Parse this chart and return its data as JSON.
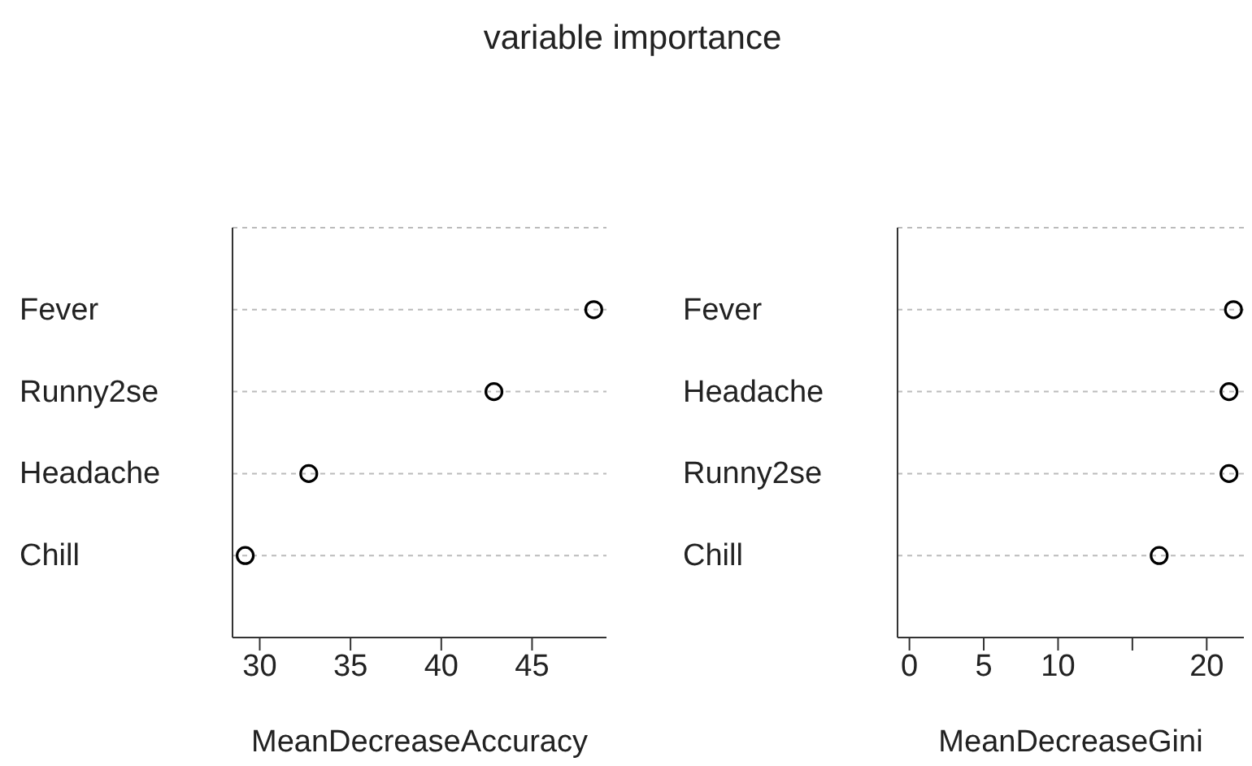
{
  "chart_data": [
    {
      "type": "scatter",
      "title": "variable importance",
      "orientation": "horizontal",
      "categories": [
        "Fever",
        "Runny2se",
        "Headache",
        "Chill"
      ],
      "values": [
        48.4,
        42.9,
        32.7,
        29.2
      ],
      "color": "#000000",
      "marker": "circle",
      "grid": "y",
      "xlabel": "MeanDecreaseAccuracy",
      "xlim": [
        28.5,
        49.1
      ],
      "xticks": [
        30,
        35,
        40,
        45
      ]
    },
    {
      "type": "scatter",
      "orientation": "horizontal",
      "categories": [
        "Fever",
        "Headache",
        "Runny2se",
        "Chill"
      ],
      "values": [
        21.8,
        21.5,
        21.5,
        16.8
      ],
      "color": "#000000",
      "marker": "circle",
      "grid": "y",
      "xlabel": "MeanDecreaseGini",
      "xlim": [
        -0.8,
        22.5
      ],
      "xticks": [
        0,
        5,
        10,
        {
          "value": 15,
          "label": null
        },
        20
      ]
    }
  ]
}
